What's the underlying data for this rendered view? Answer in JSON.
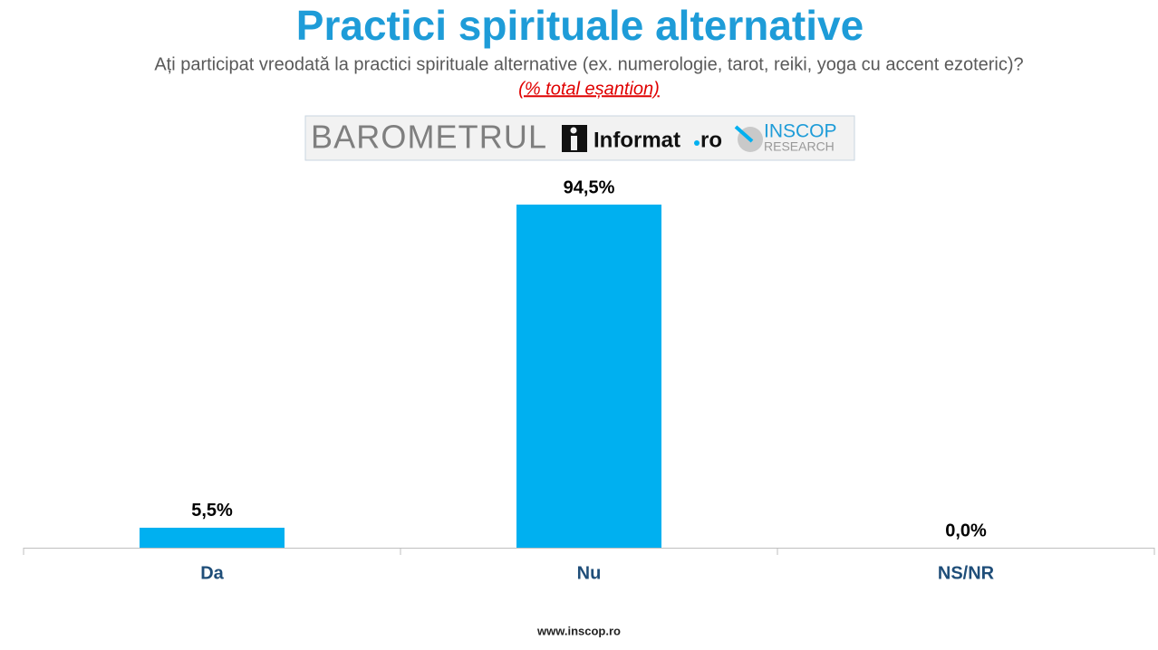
{
  "chart_data": {
    "type": "bar",
    "title": "Practici spirituale alternative",
    "subtitle": "Ați participat vreodată la practici spirituale alternative (ex. numerologie, tarot, reiki, yoga cu accent ezoteric)?",
    "note": "(% total eșantion)",
    "logo": {
      "barometru": "BAROMETRUL",
      "informat": "Informat",
      "ro": "ro",
      "inscop": "INSCOP",
      "research": "RESEARCH"
    },
    "categories": [
      "Da",
      "Nu",
      "NS/NR"
    ],
    "values": [
      5.5,
      94.5,
      0.0
    ],
    "value_labels": [
      "5,5%",
      "94,5%",
      "0,0%"
    ],
    "color": "#00b0f0",
    "footer": "www.inscop.ro"
  }
}
